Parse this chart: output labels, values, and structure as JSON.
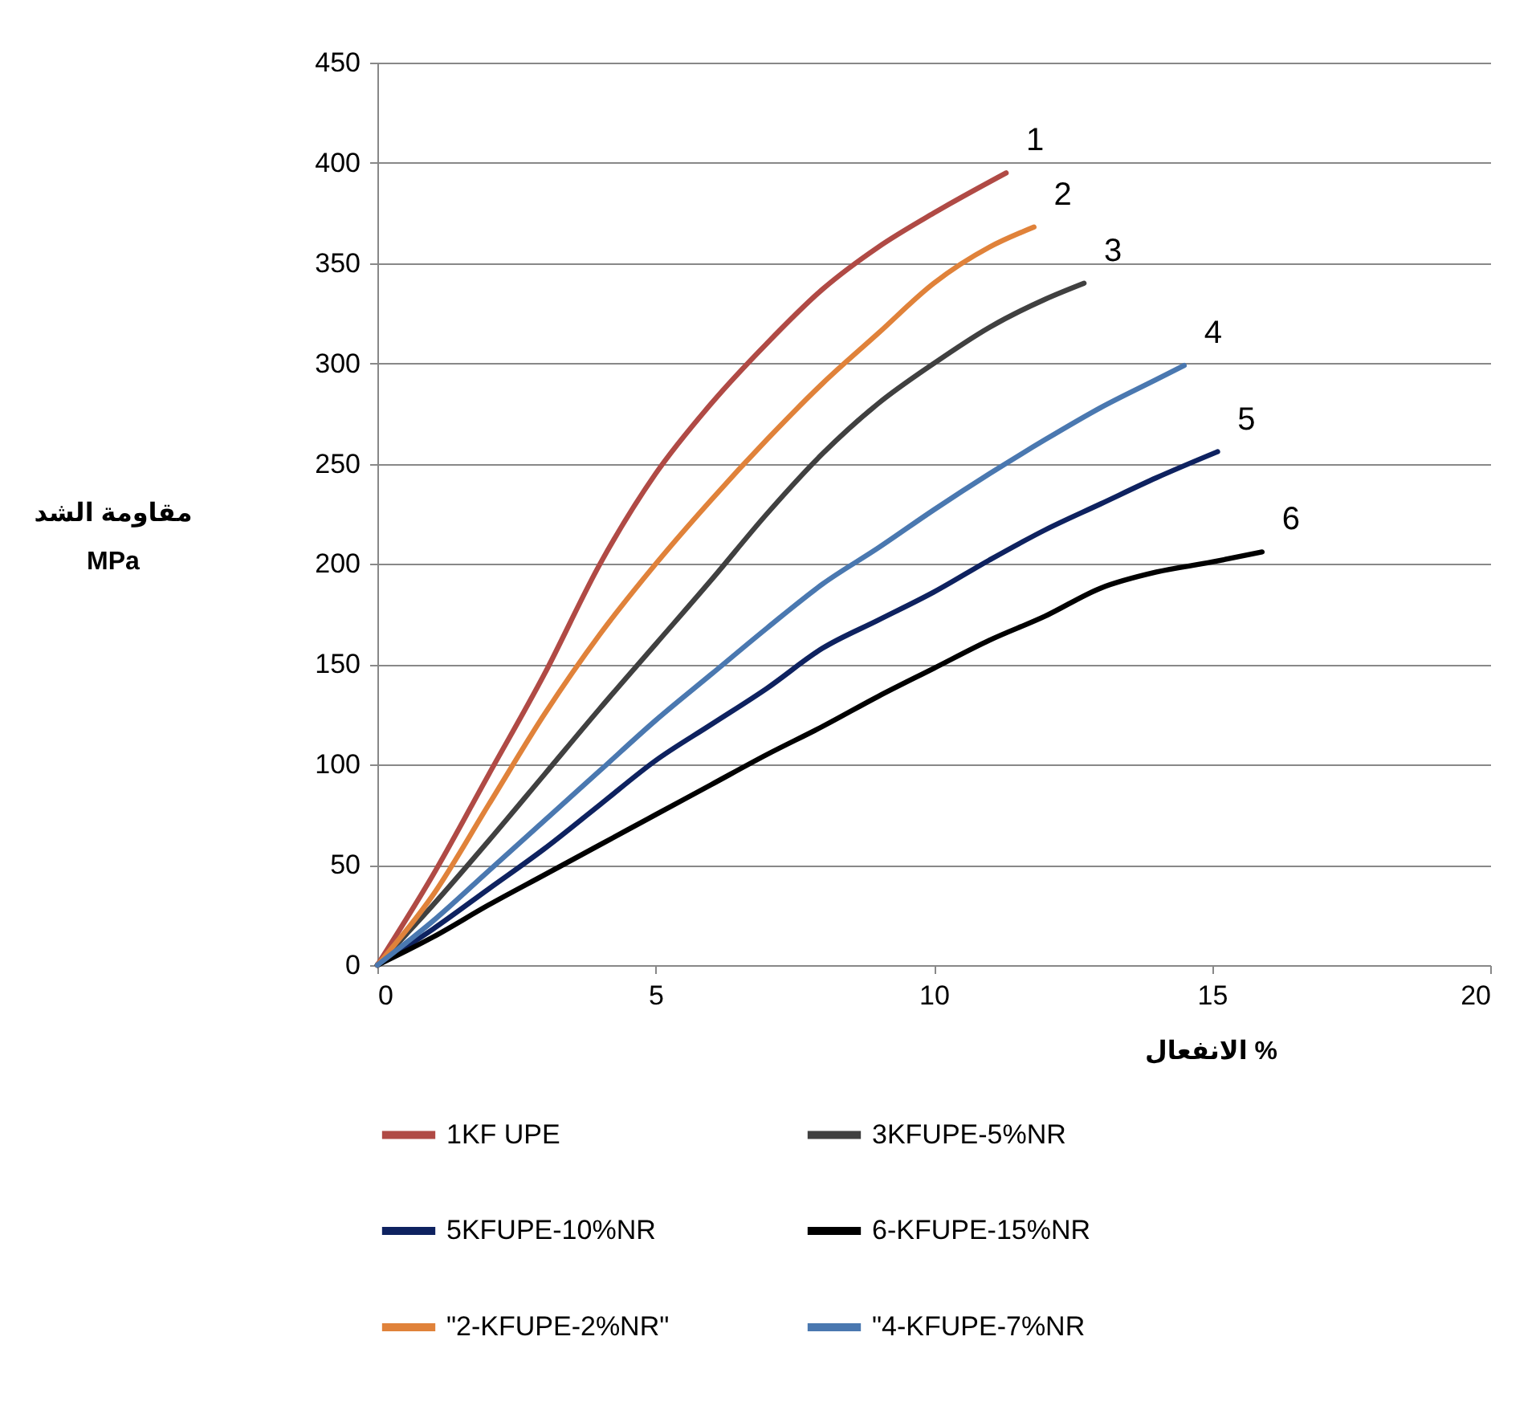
{
  "chart_data": {
    "type": "line",
    "xlabel": "الانفعال %",
    "ylabel": "مقاومة الشد\nMPa",
    "xlim": [
      0,
      20
    ],
    "xticks": [
      0,
      5,
      10,
      15,
      20
    ],
    "ylim": [
      0,
      450
    ],
    "yticks": [
      0,
      50,
      100,
      150,
      200,
      250,
      300,
      350,
      400,
      450
    ],
    "grid": "y",
    "legend": "bottom",
    "line_style": "solid",
    "marker": "none",
    "series": [
      {
        "name": "1KF UPE",
        "color": "#b04a45",
        "x": [
          0,
          1,
          2,
          3,
          4,
          5,
          6,
          7,
          8,
          9,
          10,
          11.3
        ],
        "values": [
          0,
          45,
          95,
          145,
          200,
          245,
          280,
          310,
          337,
          358,
          375,
          395
        ]
      },
      {
        "name": "3KFUPE-5%NR",
        "color": "#404040",
        "x": [
          0,
          1,
          2,
          3,
          4,
          5,
          6,
          7,
          8,
          9,
          10,
          11,
          12,
          12.7
        ],
        "values": [
          0,
          30,
          62,
          95,
          128,
          160,
          192,
          225,
          255,
          280,
          300,
          318,
          332,
          340
        ]
      },
      {
        "name": "5KFUPE-10%NR",
        "color": "#0e2260",
        "x": [
          0,
          1,
          2,
          3,
          4,
          5,
          6,
          7,
          8,
          9,
          10,
          11,
          12,
          13,
          14,
          15.1
        ],
        "values": [
          0,
          18,
          38,
          58,
          80,
          102,
          120,
          138,
          158,
          172,
          186,
          202,
          217,
          230,
          243,
          256
        ]
      },
      {
        "name": "6-KFUPE-15%NR",
        "color": "#000000",
        "x": [
          0,
          1,
          2,
          3,
          4,
          5,
          6,
          7,
          8,
          9,
          10,
          11,
          12,
          13,
          14,
          15,
          15.9
        ],
        "values": [
          0,
          14,
          30,
          45,
          60,
          75,
          90,
          105,
          119,
          134,
          148,
          162,
          174,
          188,
          196,
          201,
          206
        ]
      },
      {
        "name": "\"2-KFUPE-2%NR\"",
        "color": "#e0823a",
        "x": [
          0,
          1,
          2,
          3,
          4,
          5,
          6,
          7,
          8,
          9,
          10,
          11,
          11.8
        ],
        "values": [
          0,
          35,
          80,
          125,
          165,
          200,
          232,
          262,
          290,
          315,
          340,
          358,
          368
        ]
      },
      {
        "name": "\"4-KFUPE-7%NR",
        "color": "#4a78b0",
        "x": [
          0,
          1,
          2,
          3,
          4,
          5,
          6,
          7,
          8,
          9,
          10,
          11,
          12,
          13,
          14,
          14.5
        ],
        "values": [
          0,
          22,
          47,
          72,
          97,
          122,
          145,
          168,
          190,
          208,
          227,
          245,
          262,
          278,
          292,
          299
        ]
      }
    ],
    "annotations": [
      {
        "text": "1",
        "x": 11.3,
        "y": 395
      },
      {
        "text": "2",
        "x": 11.8,
        "y": 368
      },
      {
        "text": "3",
        "x": 12.7,
        "y": 340
      },
      {
        "text": "4",
        "x": 14.5,
        "y": 299
      },
      {
        "text": "5",
        "x": 15.1,
        "y": 256
      },
      {
        "text": "6",
        "x": 15.9,
        "y": 206
      }
    ]
  }
}
